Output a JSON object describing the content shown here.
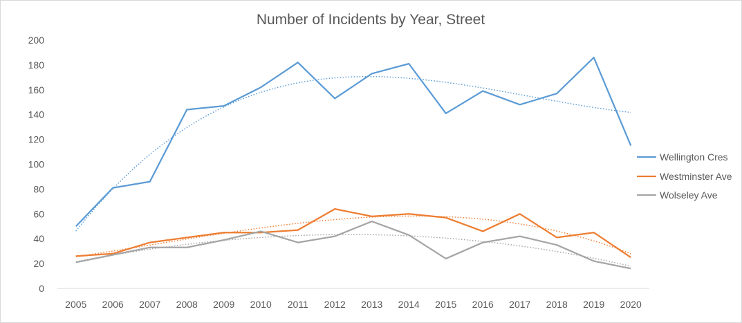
{
  "chart_data": {
    "type": "line",
    "title": "Number of Incidents by Year, Street",
    "xlabel": "",
    "ylabel": "",
    "x": [
      "2005",
      "2006",
      "2007",
      "2008",
      "2009",
      "2010",
      "2011",
      "2012",
      "2013",
      "2014",
      "2015",
      "2016",
      "2017",
      "2018",
      "2019",
      "2020"
    ],
    "ylim": [
      0,
      200
    ],
    "yticks": [
      0,
      20,
      40,
      60,
      80,
      100,
      120,
      140,
      160,
      180,
      200
    ],
    "grid": false,
    "legend_position": "right",
    "trendlines": "polynomial (dotted)",
    "series": [
      {
        "name": "Wellington Cres",
        "color": "#5b9bd5",
        "values": [
          50,
          81,
          86,
          144,
          147,
          162,
          182,
          153,
          173,
          181,
          141,
          159,
          148,
          157,
          186,
          115
        ]
      },
      {
        "name": "Westminster Ave",
        "color": "#ed7d31",
        "values": [
          26,
          28,
          37,
          41,
          45,
          45,
          47,
          64,
          58,
          60,
          57,
          46,
          60,
          41,
          45,
          25
        ]
      },
      {
        "name": "Wolseley Ave",
        "color": "#a5a5a5",
        "values": [
          21,
          27,
          33,
          33,
          39,
          46,
          37,
          42,
          54,
          43,
          24,
          37,
          42,
          35,
          22,
          16
        ]
      }
    ]
  }
}
